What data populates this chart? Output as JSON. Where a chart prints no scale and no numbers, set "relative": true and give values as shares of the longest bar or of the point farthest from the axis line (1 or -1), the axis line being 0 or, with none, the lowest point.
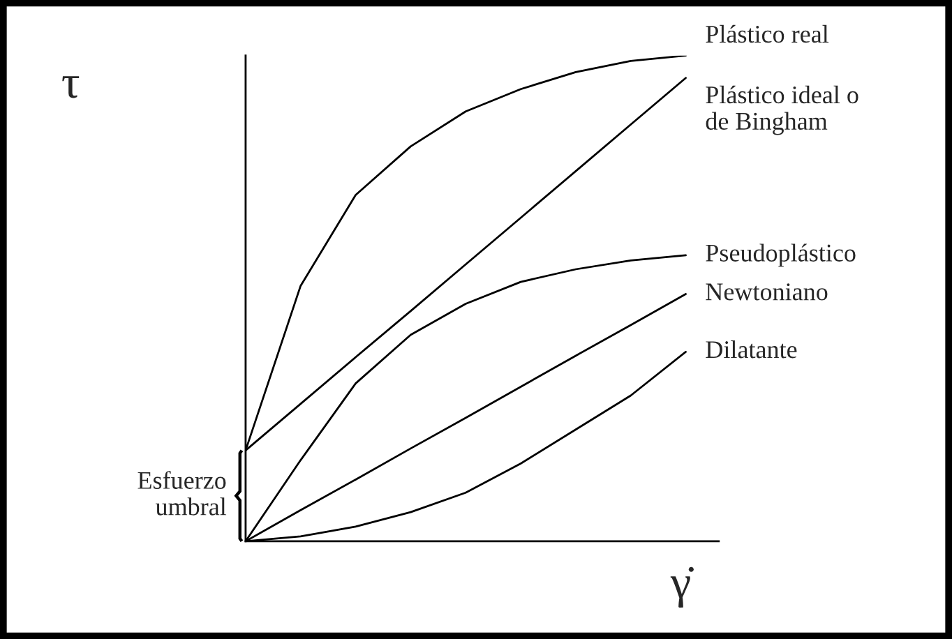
{
  "chart_data": {
    "type": "line",
    "relative": true,
    "xlabel": "γ̇",
    "ylabel": "τ",
    "categories": [
      null,
      null,
      null,
      null,
      null,
      null,
      null,
      null,
      null
    ],
    "series": [
      {
        "name": "Plástico real",
        "color": "#000000",
        "values": [
          0.187,
          0.526,
          0.713,
          0.813,
          0.885,
          0.931,
          0.966,
          0.989,
          1
        ]
      },
      {
        "name": "Plástico ideal o\nde Bingham",
        "color": "#000000",
        "values": [
          0.187,
          0.283,
          0.379,
          0.474,
          0.57,
          0.666,
          0.762,
          0.858,
          0.954
        ]
      },
      {
        "name": "Pseudoplástico",
        "color": "#000000",
        "values": [
          0,
          0.167,
          0.325,
          0.425,
          0.489,
          0.534,
          0.56,
          0.578,
          0.589
        ]
      },
      {
        "name": "Newtoniano",
        "color": "#000000",
        "values": [
          0,
          0.064,
          0.127,
          0.191,
          0.254,
          0.318,
          0.382,
          0.445,
          0.509
        ]
      },
      {
        "name": "Dilatante",
        "color": "#000000",
        "values": [
          0,
          0.01,
          0.03,
          0.06,
          0.1,
          0.16,
          0.23,
          0.3,
          0.39
        ]
      }
    ],
    "annotations": [
      "Esfuerzo\numbral"
    ],
    "legend": false,
    "marker": "none",
    "line_style": "solid"
  }
}
